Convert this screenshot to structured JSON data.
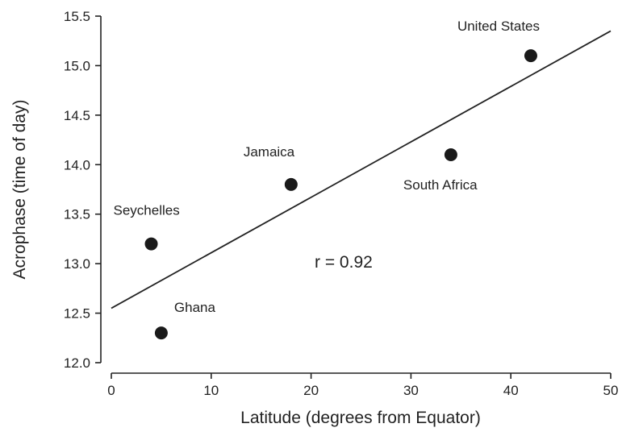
{
  "chart_data": {
    "type": "scatter",
    "xlabel": "Latitude (degrees from Equator)",
    "ylabel": "Acrophase (time of day)",
    "xlim": [
      0,
      50
    ],
    "ylim": [
      12.0,
      15.5
    ],
    "x_ticks": [
      "0",
      "10",
      "20",
      "30",
      "40",
      "50"
    ],
    "y_ticks": [
      "12.0",
      "12.5",
      "13.0",
      "13.5",
      "14.0",
      "14.5",
      "15.0",
      "15.5"
    ],
    "grid": false,
    "points": [
      {
        "label": "Seychelles",
        "x": 4,
        "y": 13.2
      },
      {
        "label": "Ghana",
        "x": 5,
        "y": 12.3
      },
      {
        "label": "Jamaica",
        "x": 18,
        "y": 13.8
      },
      {
        "label": "South Africa",
        "x": 34,
        "y": 14.1
      },
      {
        "label": "United States",
        "x": 42,
        "y": 15.1
      }
    ],
    "regression_line": {
      "x": [
        0,
        50
      ],
      "y": [
        12.55,
        15.35
      ]
    },
    "annotation": "r = 0.92"
  }
}
